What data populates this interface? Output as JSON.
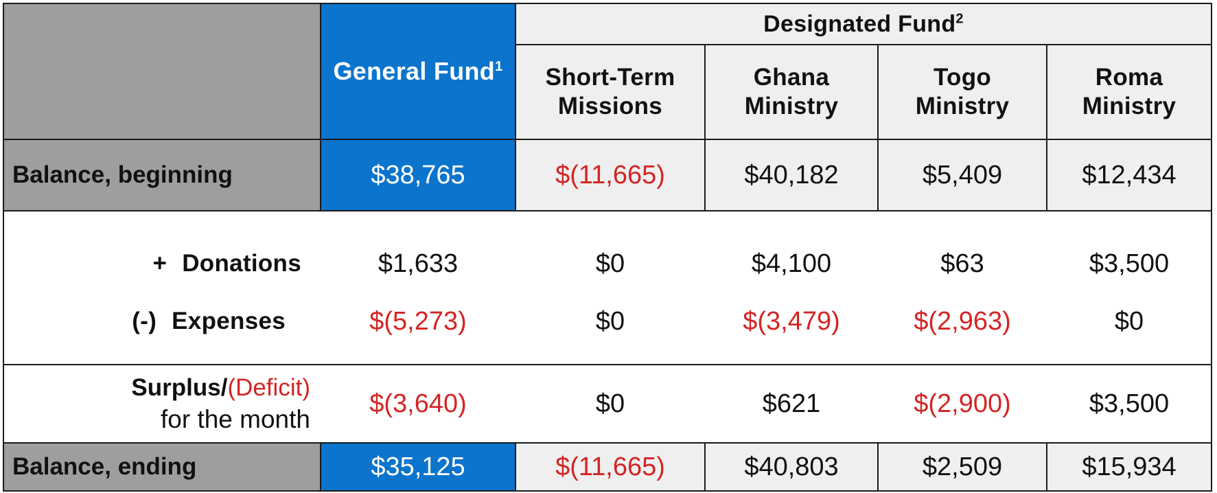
{
  "header": {
    "designated_fund": "Designated Fund",
    "designated_sup": "2",
    "general_fund": "General Fund",
    "general_sup": "1",
    "columns": [
      {
        "line1": "Short-Term",
        "line2": "Missions"
      },
      {
        "line1": "Ghana",
        "line2": "Ministry"
      },
      {
        "line1": "Togo",
        "line2": "Ministry"
      },
      {
        "line1": "Roma",
        "line2": "Ministry"
      }
    ]
  },
  "rows": {
    "balance_beginning": {
      "label": "Balance, beginning",
      "values": [
        "$38,765",
        "$(11,665)",
        "$40,182",
        "$5,409",
        "$12,434"
      ]
    },
    "donations": {
      "sign": "+",
      "label": "Donations",
      "values": [
        "$1,633",
        "$0",
        "$4,100",
        "$63",
        "$3,500"
      ]
    },
    "expenses": {
      "sign": "(-)",
      "label": "Expenses",
      "values": [
        "$(5,273)",
        "$0",
        "$(3,479)",
        "$(2,963)",
        "$0"
      ]
    },
    "surplus": {
      "label_part1": "Surplus/",
      "label_part2": "(Deficit)",
      "label_line2": "for the month",
      "values": [
        "$(3,640)",
        "$0",
        "$621",
        "$(2,900)",
        "$3,500"
      ]
    },
    "balance_ending": {
      "label": "Balance, ending",
      "values": [
        "$35,125",
        "$(11,665)",
        "$40,803",
        "$2,509",
        "$15,934"
      ]
    }
  },
  "colors": {
    "gray": "#9e9e9e",
    "blue": "#0b74cc",
    "light": "#efefef",
    "red": "#d42424",
    "border": "#1a1a1a"
  }
}
